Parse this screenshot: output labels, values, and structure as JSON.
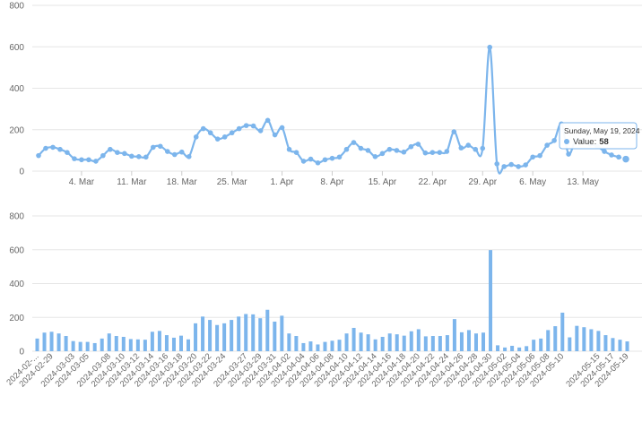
{
  "chart_data": [
    {
      "type": "line",
      "y_axis": {
        "ticks": [
          "0",
          "200",
          "400",
          "600",
          "800"
        ],
        "ylim": [
          0,
          800
        ]
      },
      "x_axis": {
        "tick_labels": [
          "4. Mar",
          "11. Mar",
          "18. Mar",
          "25. Mar",
          "1. Apr",
          "8. Apr",
          "15. Apr",
          "22. Apr",
          "29. Apr",
          "6. May",
          "13. May"
        ]
      },
      "grid": true,
      "color": "#7cb5ec",
      "tooltip": {
        "date": "Sunday, May 19, 2024",
        "label": "Value:",
        "value": "58"
      }
    },
    {
      "type": "bar",
      "y_axis": {
        "ticks": [
          "0",
          "200",
          "400",
          "600",
          "800"
        ],
        "ylim": [
          0,
          800
        ]
      },
      "x_axis": {
        "tick_labels": [
          "2024-02-...",
          "2024-02-29",
          "2024-03-03",
          "2024-03-05",
          "2024-03-08",
          "2024-03-10",
          "2024-03-12",
          "2024-03-14",
          "2024-03-16",
          "2024-03-18",
          "2024-03-20",
          "2024-03-22",
          "2024-03-24",
          "2024-03-27",
          "2024-03-29",
          "2024-03-31",
          "2024-04-02",
          "2024-04-04",
          "2024-04-06",
          "2024-04-08",
          "2024-04-10",
          "2024-04-12",
          "2024-04-14",
          "2024-04-16",
          "2024-04-18",
          "2024-04-20",
          "2024-04-22",
          "2024-04-24",
          "2024-04-26",
          "2024-04-28",
          "2024-04-30",
          "2024-05-02",
          "2024-05-04",
          "2024-05-06",
          "2024-05-08",
          "2024-05-10",
          "2024-05-15",
          "2024-05-17",
          "2024-05-19"
        ]
      },
      "grid": true,
      "color": "#7cb5ec"
    }
  ],
  "series": {
    "dates": [
      "2024-02-27",
      "2024-02-28",
      "2024-02-29",
      "2024-03-01",
      "2024-03-02",
      "2024-03-03",
      "2024-03-04",
      "2024-03-05",
      "2024-03-06",
      "2024-03-07",
      "2024-03-08",
      "2024-03-09",
      "2024-03-10",
      "2024-03-11",
      "2024-03-12",
      "2024-03-13",
      "2024-03-14",
      "2024-03-15",
      "2024-03-16",
      "2024-03-17",
      "2024-03-18",
      "2024-03-19",
      "2024-03-20",
      "2024-03-21",
      "2024-03-22",
      "2024-03-23",
      "2024-03-24",
      "2024-03-25",
      "2024-03-26",
      "2024-03-27",
      "2024-03-28",
      "2024-03-29",
      "2024-03-30",
      "2024-03-31",
      "2024-04-01",
      "2024-04-02",
      "2024-04-03",
      "2024-04-04",
      "2024-04-05",
      "2024-04-06",
      "2024-04-07",
      "2024-04-08",
      "2024-04-09",
      "2024-04-10",
      "2024-04-11",
      "2024-04-12",
      "2024-04-13",
      "2024-04-14",
      "2024-04-15",
      "2024-04-16",
      "2024-04-17",
      "2024-04-18",
      "2024-04-19",
      "2024-04-20",
      "2024-04-21",
      "2024-04-22",
      "2024-04-23",
      "2024-04-24",
      "2024-04-25",
      "2024-04-26",
      "2024-04-27",
      "2024-04-28",
      "2024-04-29",
      "2024-04-30",
      "2024-05-01",
      "2024-05-02",
      "2024-05-03",
      "2024-05-04",
      "2024-05-05",
      "2024-05-06",
      "2024-05-07",
      "2024-05-08",
      "2024-05-09",
      "2024-05-10",
      "2024-05-11",
      "2024-05-12",
      "2024-05-13",
      "2024-05-14",
      "2024-05-15",
      "2024-05-16",
      "2024-05-17",
      "2024-05-18",
      "2024-05-19"
    ],
    "values": [
      75,
      110,
      115,
      105,
      90,
      60,
      55,
      55,
      48,
      75,
      105,
      90,
      85,
      72,
      70,
      68,
      115,
      120,
      95,
      80,
      92,
      70,
      165,
      205,
      185,
      155,
      165,
      185,
      205,
      220,
      218,
      195,
      245,
      175,
      210,
      105,
      90,
      48,
      58,
      40,
      55,
      62,
      68,
      105,
      138,
      110,
      100,
      70,
      85,
      105,
      100,
      92,
      118,
      130,
      88,
      90,
      90,
      95,
      190,
      112,
      125,
      105,
      110,
      598,
      35,
      22,
      32,
      22,
      30,
      68,
      75,
      125,
      148,
      228,
      82,
      150,
      142,
      130,
      120,
      95,
      78,
      68,
      58
    ]
  }
}
